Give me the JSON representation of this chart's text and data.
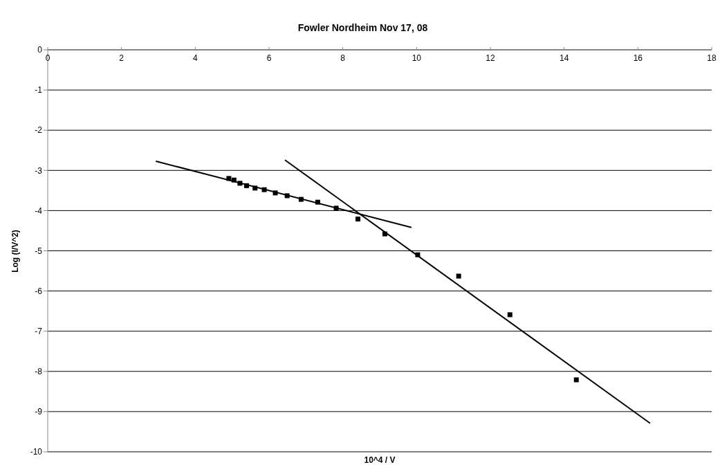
{
  "chart_data": {
    "type": "scatter",
    "title": "Fowler Nordheim Nov 17, 08",
    "xlabel": "10^4 / V",
    "ylabel": "Log (I/V^2)",
    "x": [
      4.91,
      5.05,
      5.21,
      5.39,
      5.62,
      5.87,
      6.17,
      6.49,
      6.87,
      7.32,
      7.82,
      8.41,
      9.14,
      10.03,
      11.14,
      12.53,
      14.33
    ],
    "series": [
      {
        "color": "#000000",
        "marker": "square",
        "values": [
          -3.2,
          -3.24,
          -3.32,
          -3.38,
          -3.44,
          -3.48,
          -3.56,
          -3.63,
          -3.72,
          -3.79,
          -3.94,
          -4.21,
          -4.58,
          -5.1,
          -5.63,
          -6.59,
          -8.21
        ]
      },
      {
        "type": "line",
        "color": "#000000",
        "marker": "none",
        "x": [
          2.93,
          9.86
        ],
        "values": [
          -2.77,
          -4.42
        ]
      },
      {
        "type": "line",
        "color": "#000000",
        "marker": "none",
        "x": [
          6.43,
          16.33
        ],
        "values": [
          -2.74,
          -9.29
        ]
      }
    ],
    "xlim": [
      0,
      18
    ],
    "xticks": [
      0,
      2,
      4,
      6,
      8,
      10,
      12,
      14,
      16,
      18
    ],
    "ylim": [
      -10,
      0
    ],
    "yticks": [
      0,
      -1,
      -2,
      -3,
      -4,
      -5,
      -6,
      -7,
      -8,
      -9,
      -10
    ],
    "grid": "y",
    "legend": false
  }
}
